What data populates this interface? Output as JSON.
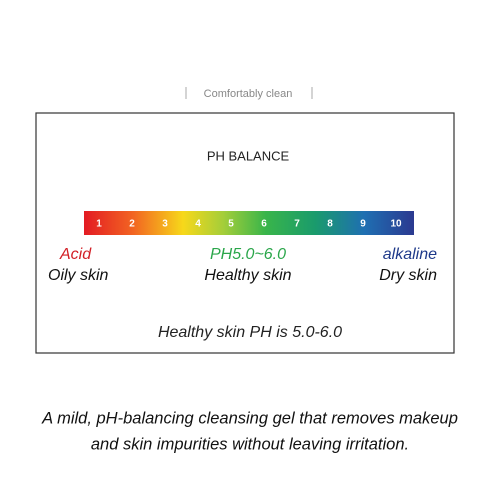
{
  "tagline": "Comfortably clean",
  "panel": {
    "title": "PH BALANCE",
    "scale": [
      1,
      2,
      3,
      4,
      5,
      6,
      7,
      8,
      9,
      10
    ],
    "left": {
      "term": "Acid",
      "desc": "Oily skin"
    },
    "middle": {
      "term": "PH5.0~6.0",
      "desc": "Healthy skin"
    },
    "right": {
      "term": "alkaline",
      "desc": "Dry skin"
    },
    "note": "Healthy skin PH is 5.0-6.0"
  },
  "caption": [
    "A mild, pH-balancing cleansing gel that removes makeup",
    "and skin impurities without leaving irritation."
  ]
}
